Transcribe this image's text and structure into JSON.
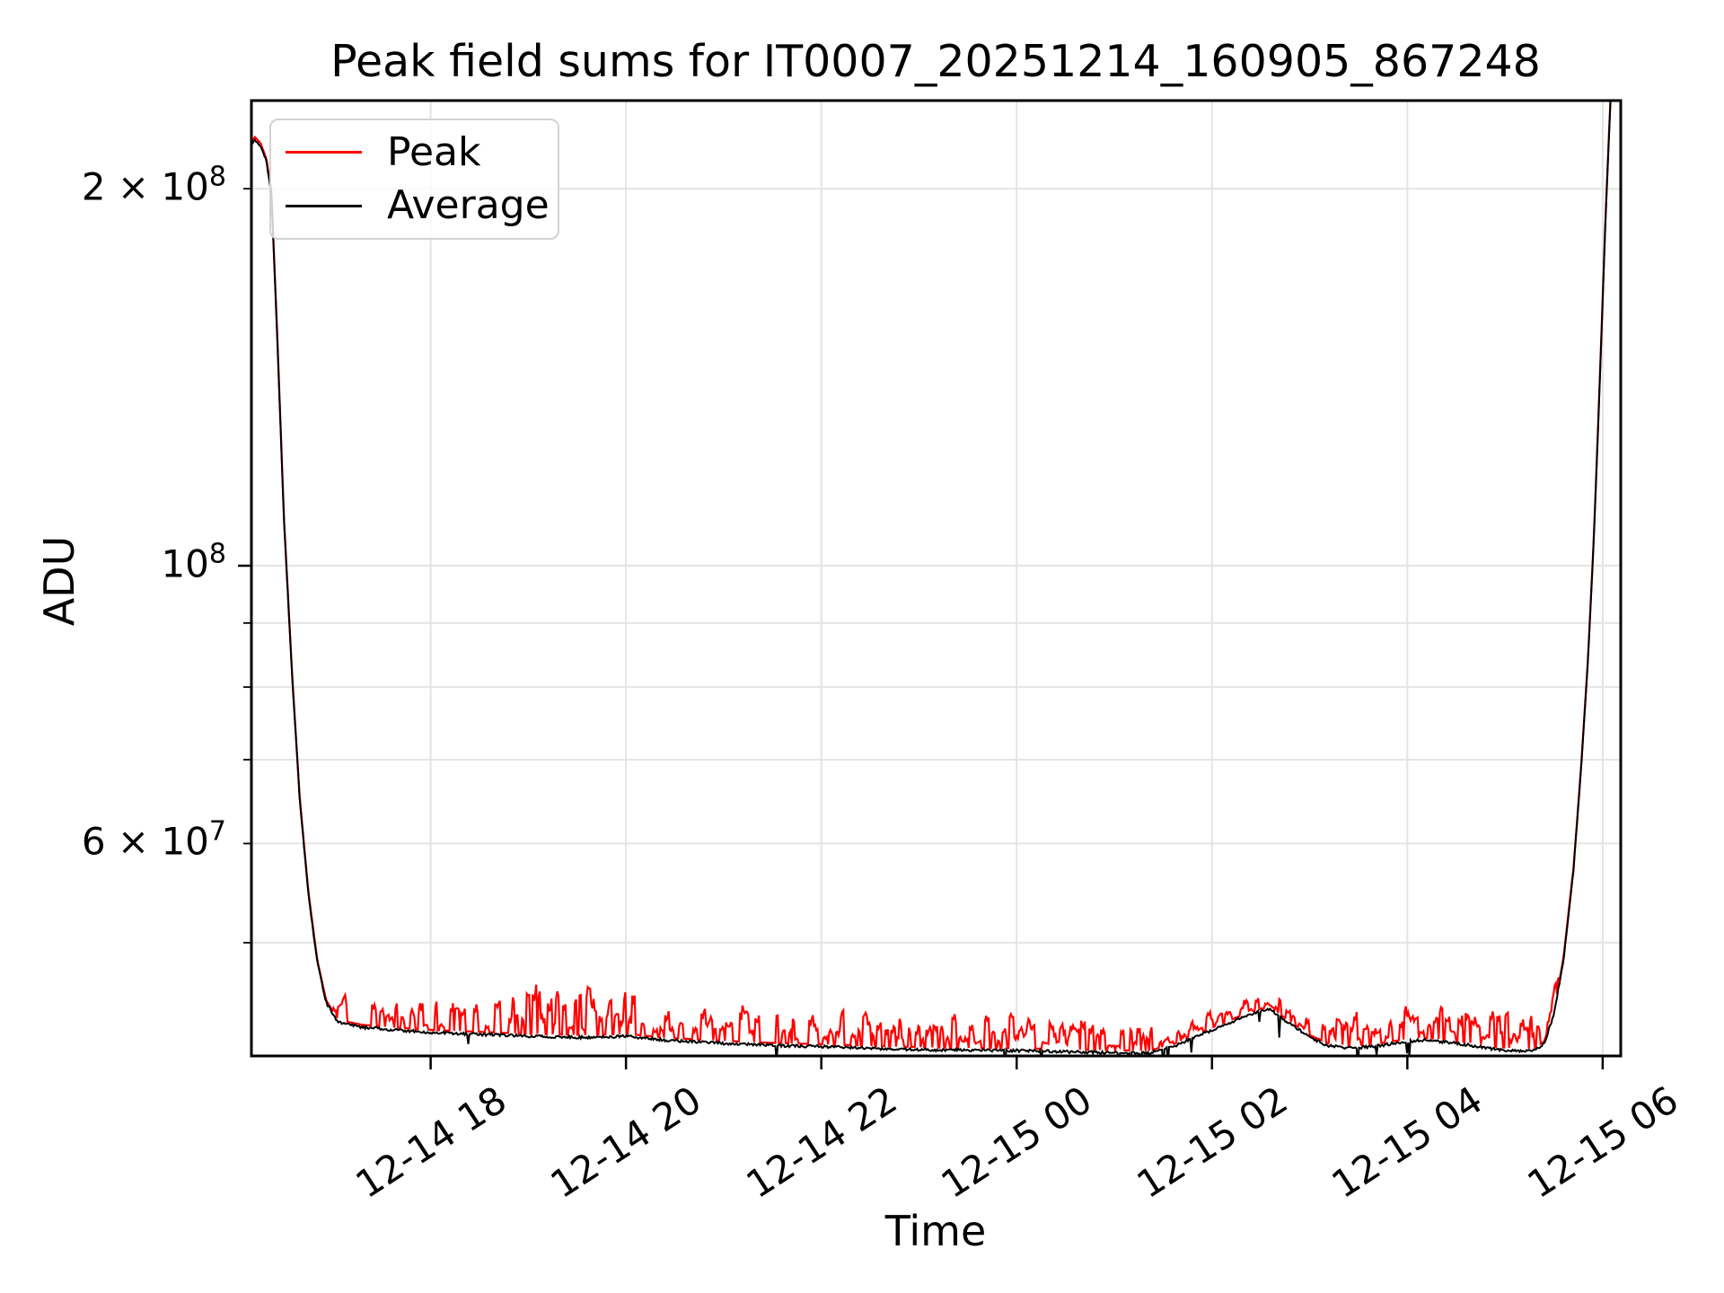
{
  "figure": {
    "title": "Peak field sums for IT0007_20251214_160905_867248",
    "xlabel": "Time",
    "ylabel": "ADU"
  },
  "legend": {
    "entries": [
      {
        "label": "Peak",
        "color": "#ff0000"
      },
      {
        "label": "Average",
        "color": "#000000"
      }
    ]
  },
  "axes": {
    "x_range_hours": [
      16.165,
      30.185
    ],
    "x_unit": "hours since 2025-12-14 00:00",
    "y_range": [
      40600000,
      235200000
    ],
    "y_scale": "log",
    "grid_color": "#e4e4e4",
    "spine_color": "#000000",
    "x_ticks": [
      {
        "label": "12-14 18",
        "hour": 18
      },
      {
        "label": "12-14 20",
        "hour": 20
      },
      {
        "label": "12-14 22",
        "hour": 22
      },
      {
        "label": "12-15 00",
        "hour": 24
      },
      {
        "label": "12-15 02",
        "hour": 26
      },
      {
        "label": "12-15 04",
        "hour": 28
      },
      {
        "label": "12-15 06",
        "hour": 30
      }
    ],
    "y_tick_labels": [
      {
        "base": "2 × 10",
        "exp": "8",
        "value": 200000000
      },
      {
        "base": "10",
        "exp": "8",
        "value": 100000000
      },
      {
        "base": "6 × 10",
        "exp": "7",
        "value": 60000000
      }
    ],
    "y_major_tick_values": [
      100000000
    ],
    "y_minor_tick_values": [
      200000000,
      90000000,
      80000000,
      70000000,
      60000000,
      50000000
    ],
    "y_grid_values": [
      200000000,
      100000000,
      90000000,
      80000000,
      70000000,
      60000000,
      50000000
    ]
  },
  "chart_data": {
    "type": "line",
    "title": "Peak field sums for IT0007_20251214_160905_867248",
    "xlabel": "Time",
    "ylabel": "ADU",
    "x_unit": "hours since 2025-12-14 00:00",
    "ylim": [
      40600000,
      235200000
    ],
    "grid": true,
    "legend_position": "upper left",
    "series": [
      {
        "name": "Average",
        "color": "#000000",
        "anchors_t": [
          16.165,
          16.2,
          16.26,
          16.32,
          16.37,
          16.43,
          16.5,
          16.58,
          16.66,
          16.75,
          16.84,
          16.93,
          17.05,
          17.3,
          17.6,
          18.0,
          18.5,
          19.0,
          19.6,
          20.0,
          20.4,
          21.0,
          21.5,
          22.0,
          22.6,
          23.2,
          24.0,
          24.6,
          25.0,
          25.35,
          25.6,
          25.85,
          26.1,
          26.35,
          26.5,
          26.6,
          26.72,
          26.87,
          27.0,
          27.2,
          27.45,
          27.7,
          27.95,
          28.15,
          28.4,
          28.65,
          28.9,
          29.1,
          29.28,
          29.4,
          29.5,
          29.6,
          29.7,
          29.78,
          29.85,
          29.91,
          29.97,
          30.03,
          30.09,
          30.15,
          30.185
        ],
        "anchors_v": [
          217000000,
          219000000,
          216500000,
          210000000,
          198000000,
          152000000,
          108000000,
          82000000,
          65000000,
          54500000,
          48200000,
          44800000,
          43200000,
          42800000,
          42600000,
          42400000,
          42250000,
          42100000,
          42000000,
          42100000,
          41800000,
          41550000,
          41400000,
          41300000,
          41150000,
          41050000,
          41000000,
          40900000,
          40850000,
          40800000,
          41300000,
          42100000,
          42900000,
          43700000,
          44100000,
          44200000,
          43500000,
          42700000,
          42000000,
          41350000,
          41200000,
          41350000,
          41650000,
          41800000,
          41650000,
          41400000,
          41100000,
          41000000,
          40950000,
          41500000,
          43800000,
          48500000,
          57000000,
          69000000,
          84000000,
          105000000,
          140000000,
          190000000,
          245000000,
          300000000,
          340000000
        ],
        "noise": {
          "jitter": 0.005,
          "dip_probability": 0.013,
          "dip_amp_min": 0.015,
          "dip_amp_max": 0.045,
          "dip_t0": 17.0,
          "dip_t1": 29.3
        }
      },
      {
        "name": "Peak",
        "color": "#ff0000",
        "base": "Average",
        "offset_factor": 1.0045,
        "spike_regions": [
          {
            "t0": 17.0,
            "t1": 18.2,
            "prob": 0.3,
            "amp_min": 0.01,
            "amp_max": 0.05
          },
          {
            "t0": 18.2,
            "t1": 20.3,
            "prob": 0.33,
            "amp_min": 0.015,
            "amp_max": 0.085
          },
          {
            "t0": 20.3,
            "t1": 23.2,
            "prob": 0.33,
            "amp_min": 0.012,
            "amp_max": 0.06
          },
          {
            "t0": 23.2,
            "t1": 24.7,
            "prob": 0.46,
            "amp_min": 0.015,
            "amp_max": 0.065
          },
          {
            "t0": 24.7,
            "t1": 25.45,
            "prob": 0.38,
            "amp_min": 0.012,
            "amp_max": 0.05
          },
          {
            "t0": 25.45,
            "t1": 27.1,
            "prob": 0.42,
            "amp_min": 0.008,
            "amp_max": 0.035
          },
          {
            "t0": 27.1,
            "t1": 28.4,
            "prob": 0.5,
            "amp_min": 0.015,
            "amp_max": 0.06
          },
          {
            "t0": 28.4,
            "t1": 29.38,
            "prob": 0.52,
            "amp_min": 0.015,
            "amp_max": 0.065
          },
          {
            "t0": 29.38,
            "t1": 29.55,
            "prob": 0.4,
            "amp_min": 0.01,
            "amp_max": 0.04
          }
        ]
      }
    ],
    "features": {
      "start_value": 217000000,
      "plunge_end_hour": 17.0,
      "night_baseline": 41000000,
      "bump_peak_hour": 26.6,
      "bump_peak_value": 44200000,
      "final_rise_start_hour": 29.35,
      "exits_top_at_hour": 30.07
    }
  }
}
